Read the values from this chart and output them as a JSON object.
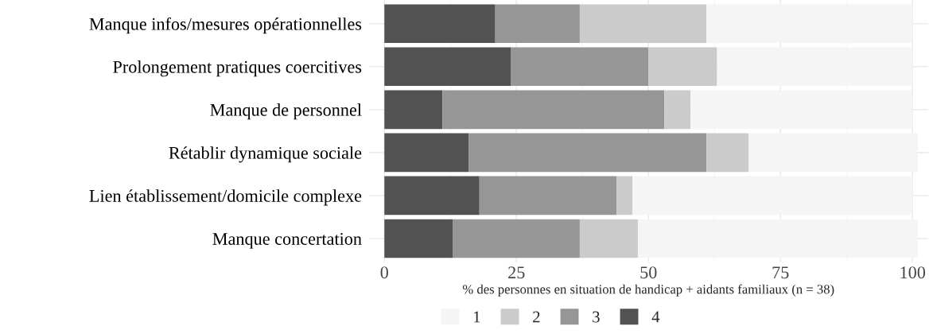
{
  "chart_data": {
    "type": "bar",
    "orientation": "horizontal",
    "stacked": true,
    "categories": [
      "Manque infos/mesures opérationnelles",
      "Prolongement pratiques coercitives",
      "Manque de personnel",
      "Rétablir dynamique sociale",
      "Lien établissement/domicile complexe",
      "Manque concertation"
    ],
    "series": [
      {
        "name": "4",
        "color": "#525252",
        "values": [
          21,
          24,
          11,
          16,
          18,
          13
        ]
      },
      {
        "name": "3",
        "color": "#969696",
        "values": [
          16,
          26,
          42,
          45,
          26,
          24
        ]
      },
      {
        "name": "2",
        "color": "#cbcbcb",
        "values": [
          24,
          13,
          5,
          8,
          3,
          11
        ]
      },
      {
        "name": "1",
        "color": "#f5f5f5",
        "values": [
          39,
          37,
          42,
          32,
          53,
          53
        ]
      }
    ],
    "xlabel": "% des personnes en situation de handicap + aidants familiaux (n = 38)",
    "xlim": [
      -3,
      103
    ],
    "xticks": [
      0,
      25,
      50,
      75,
      100
    ],
    "grid": true,
    "legend": "bottom"
  }
}
